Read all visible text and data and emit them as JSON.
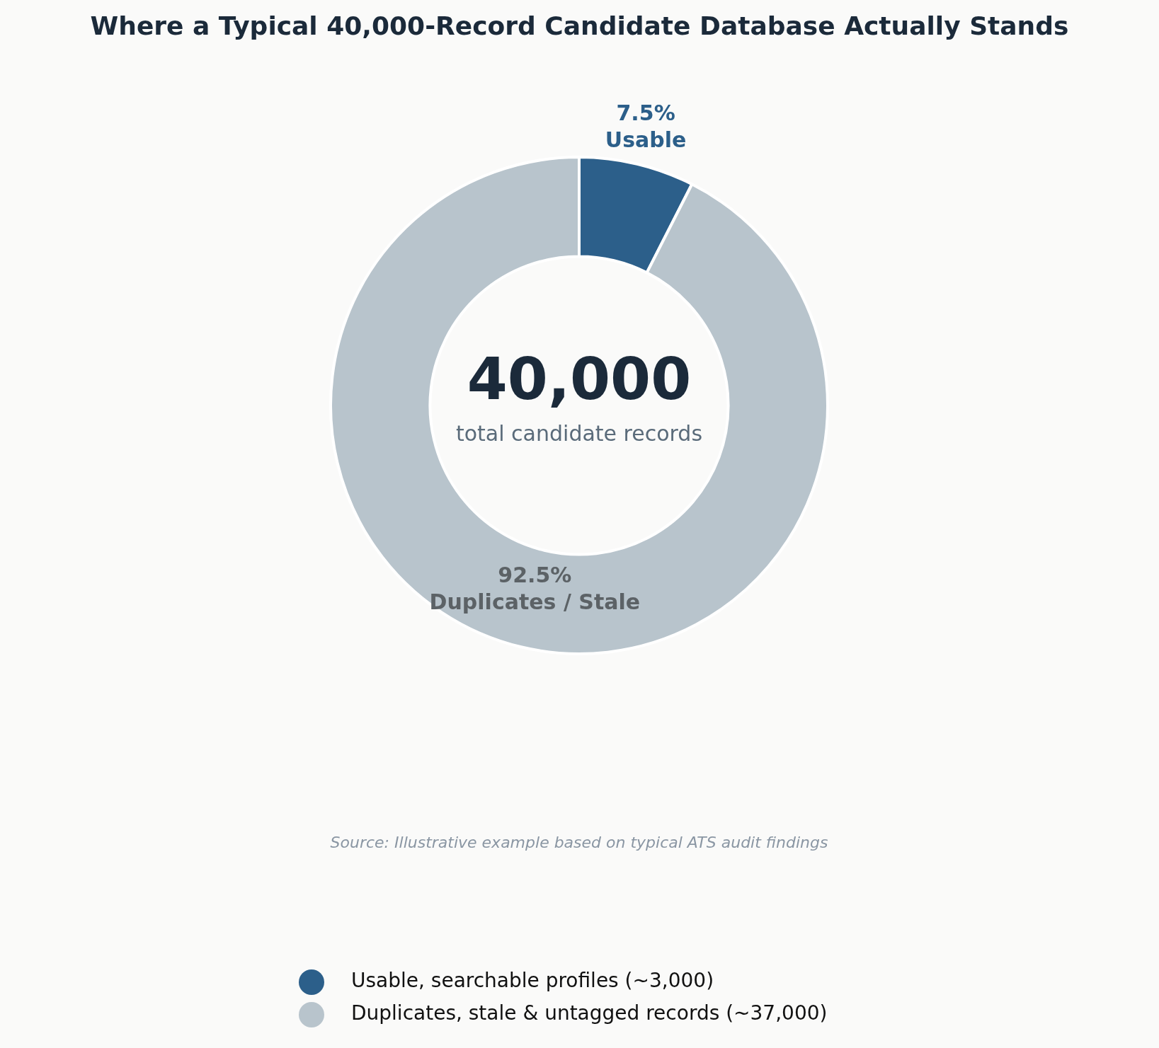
{
  "chart_data": {
    "type": "donut",
    "title": "Where a Typical 40,000-Record Candidate Database Actually Stands",
    "categories": [
      "Usable, searchable profiles (~3,000)",
      "Duplicates, stale & untagged records (~37,000)"
    ],
    "values": [
      7.5,
      92.5
    ],
    "colors": [
      "#2c5f8a",
      "#b8c4cc"
    ],
    "value_labels": [
      "7.5%\nUsable",
      "92.5%\nDuplicates / Stale"
    ],
    "annotations": [
      "40,000",
      "total candidate records",
      "Source: Illustrative example based on typical ATS audit findings"
    ],
    "legend": "bottom"
  }
}
